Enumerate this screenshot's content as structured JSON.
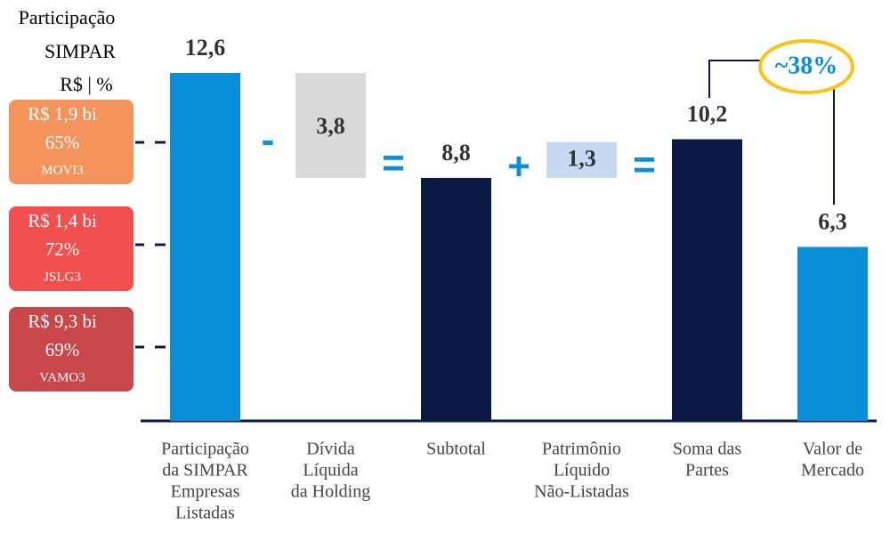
{
  "chart_data": {
    "type": "waterfall",
    "heading": [
      "Participação",
      "SIMPAR",
      "R$ | %"
    ],
    "holdings": [
      {
        "amount": "R$ 1,9 bi",
        "share": "65%",
        "ticker": "MOVI3",
        "color": "#f4935b"
      },
      {
        "amount": "R$ 1,4 bi",
        "share": "72%",
        "ticker": "JSLG3",
        "color": "#f24f4f"
      },
      {
        "amount": "R$ 9,3 bi",
        "share": "69%",
        "ticker": "VAMO3",
        "color": "#c9464b"
      }
    ],
    "categories": [
      [
        "Participação",
        "da SIMPAR",
        "Empresas",
        "Listadas"
      ],
      [
        "Dívida",
        "Líquida",
        "da Holding"
      ],
      [
        "Subtotal"
      ],
      [
        "Patrimônio",
        "Líquido",
        "Não-Listadas"
      ],
      [
        "Soma das",
        "Partes"
      ],
      [
        "Valor de",
        "Mercado"
      ]
    ],
    "values": [
      12.6,
      3.8,
      8.8,
      1.3,
      10.2,
      6.3
    ],
    "value_labels": [
      "12,6",
      "3,8",
      "8,8",
      "1,3",
      "10,2",
      "6,3"
    ],
    "measure": [
      "absolute",
      "decrease",
      "total",
      "increase",
      "total",
      "absolute"
    ],
    "colors": [
      "#0a8fd9",
      "#d9d9d9",
      "#0b1a45",
      "#c5d9f1",
      "#0b1a45",
      "#0a8fd9"
    ],
    "operators": [
      "-",
      "=",
      "+",
      "="
    ],
    "annotation": "~38%"
  }
}
